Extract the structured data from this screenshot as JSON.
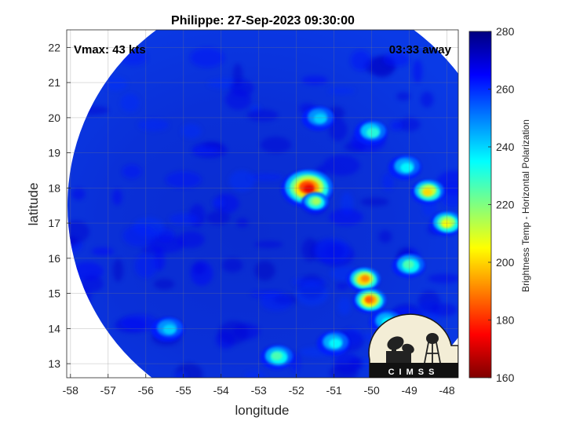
{
  "chart_data": {
    "type": "heatmap",
    "title": "Philippe: 27-Sep-2023 09:30:00",
    "xlabel": "longitude",
    "ylabel": "latitude",
    "xlim": [
      -58.1,
      -47.7
    ],
    "ylim": [
      12.6,
      22.5
    ],
    "xticks": [
      -58,
      -57,
      -56,
      -55,
      -54,
      -53,
      -52,
      -51,
      -50,
      -49,
      -48
    ],
    "yticks": [
      13,
      14,
      15,
      16,
      17,
      18,
      19,
      20,
      21,
      22
    ],
    "grid": true,
    "annotations": {
      "vmax": "Vmax: 43 kts",
      "away": "03:33 away"
    },
    "colorbar": {
      "label": "Brightness Temp - Horizontal Polarization",
      "range": [
        160,
        280
      ],
      "ticks": [
        160,
        180,
        200,
        220,
        240,
        260,
        280
      ],
      "colors": [
        "#7f0000",
        "#ff0000",
        "#ff8000",
        "#ffff00",
        "#80ff80",
        "#00ffff",
        "#0080ff",
        "#0000ff",
        "#00007f"
      ]
    },
    "swath": {
      "shape": "circular",
      "center_lon": -52.3,
      "center_lat": 17.5,
      "background_temp": 265
    },
    "features": [
      {
        "feature": "deep-convection",
        "lon": -51.7,
        "lat": 18.0,
        "min_temp": 172
      },
      {
        "feature": "convective-cell",
        "lon": -51.5,
        "lat": 17.6,
        "min_temp": 215
      },
      {
        "feature": "band",
        "lon": -50.2,
        "lat": 15.4,
        "min_temp": 190
      },
      {
        "feature": "band",
        "lon": -50.05,
        "lat": 14.8,
        "min_temp": 185
      },
      {
        "feature": "band",
        "lon": -49.0,
        "lat": 15.8,
        "min_temp": 225
      },
      {
        "feature": "band",
        "lon": -48.5,
        "lat": 17.9,
        "min_temp": 200
      },
      {
        "feature": "band",
        "lon": -49.1,
        "lat": 18.6,
        "min_temp": 235
      },
      {
        "feature": "band",
        "lon": -48.0,
        "lat": 17.0,
        "min_temp": 205
      },
      {
        "feature": "band",
        "lon": -50.0,
        "lat": 19.6,
        "min_temp": 230
      },
      {
        "feature": "band",
        "lon": -52.5,
        "lat": 13.2,
        "min_temp": 225
      },
      {
        "feature": "band",
        "lon": -51.0,
        "lat": 13.6,
        "min_temp": 235
      },
      {
        "feature": "band",
        "lon": -49.6,
        "lat": 14.2,
        "min_temp": 235
      },
      {
        "feature": "band",
        "lon": -51.4,
        "lat": 20.0,
        "min_temp": 240
      },
      {
        "feature": "cell",
        "lon": -55.4,
        "lat": 14.0,
        "min_temp": 240
      }
    ],
    "logo": {
      "text": "CIMSS"
    }
  }
}
